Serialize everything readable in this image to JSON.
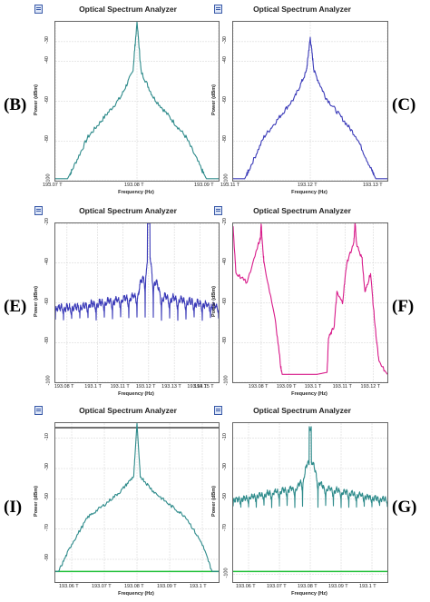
{
  "figure_labels": [
    "(B)",
    "(C)",
    "(E)",
    "(F)",
    "(I)",
    "(G)"
  ],
  "chart_data": [
    {
      "id": "B",
      "type": "line",
      "title": "Optical Spectrum Analyzer",
      "ylabel": "Power (dBm)",
      "xlabel": "Frequency (Hz)",
      "color": "#2e8b8b",
      "ylim": [
        -100,
        -20
      ],
      "xlim": [
        193.07,
        193.09
      ],
      "yticks": [
        "-100",
        "-80",
        "-60",
        "-40",
        "-30"
      ],
      "ytick_values": [
        -100,
        -80,
        -60,
        -40,
        -30
      ],
      "xticks": [
        "193.07 T",
        "193.08 T",
        "193.09 T"
      ],
      "xtick_values": [
        193.07,
        193.08,
        193.09
      ],
      "shape": "triangle",
      "series": [
        {
          "x": [
            193.07,
            193.0715,
            193.072,
            193.074,
            193.076,
            193.078,
            193.0795,
            193.08,
            193.0805,
            193.082,
            193.084,
            193.086,
            193.088,
            193.0885,
            193.09
          ],
          "y": [
            -99,
            -99,
            -95,
            -78,
            -68,
            -58,
            -45,
            -20,
            -45,
            -58,
            -68,
            -78,
            -95,
            -99,
            -99
          ]
        }
      ]
    },
    {
      "id": "C",
      "type": "line",
      "title": "Optical Spectrum Analyzer",
      "ylabel": "Power (dBm)",
      "xlabel": "Frequency (Hz)",
      "color": "#3a3ab8",
      "ylim": [
        -100,
        -20
      ],
      "xlim": [
        193.11,
        193.13
      ],
      "yticks": [
        "-100",
        "-80",
        "-60",
        "-40",
        "-30"
      ],
      "ytick_values": [
        -100,
        -80,
        -60,
        -40,
        -30
      ],
      "xticks": [
        "193.11 T",
        "193.12 T",
        "193.13 T"
      ],
      "xtick_values": [
        193.11,
        193.12,
        193.13
      ],
      "shape": "triangle",
      "series": [
        {
          "x": [
            193.11,
            193.1115,
            193.112,
            193.114,
            193.116,
            193.118,
            193.1195,
            193.12,
            193.1205,
            193.122,
            193.124,
            193.126,
            193.128,
            193.1285,
            193.13
          ],
          "y": [
            -99,
            -99,
            -95,
            -78,
            -68,
            -58,
            -45,
            -28,
            -45,
            -58,
            -68,
            -78,
            -95,
            -99,
            -99
          ]
        }
      ]
    },
    {
      "id": "E",
      "type": "line",
      "title": "Optical Spectrum Analyzer",
      "ylabel": "Power (dBm)",
      "xlabel": "Frequency (Hz)",
      "color": "#3a3ab8",
      "ylim": [
        -100,
        -20
      ],
      "xlim": [
        193.08,
        193.15
      ],
      "yticks": [
        "-100",
        "-80",
        "-60",
        "-40",
        "-20"
      ],
      "ytick_values": [
        -100,
        -80,
        -60,
        -40,
        -20
      ],
      "xticks": [
        "193.08 T",
        "193.1 T",
        "193.11 T",
        "193.12 T",
        "193.13 T",
        "193.14 T",
        "193.15 T"
      ],
      "xtick_values": [
        193.085,
        193.098,
        193.109,
        193.12,
        193.131,
        193.142,
        193.15
      ],
      "shape": "comb",
      "center": 193.12,
      "peak": -20,
      "base": -55,
      "floor": -68,
      "edge": -62,
      "teeth": 20
    },
    {
      "id": "F",
      "type": "line",
      "title": "Optical Spectrum Analyzer",
      "ylabel": "Power (dBm)",
      "xlabel": "Frequency (Hz)",
      "color": "#d81b8a",
      "ylim": [
        -100,
        -20
      ],
      "xlim": [
        193.07,
        193.125
      ],
      "yticks": [
        "-100",
        "-80",
        "-60",
        "-40",
        "-20"
      ],
      "ytick_values": [
        -100,
        -80,
        -60,
        -40,
        -20
      ],
      "xticks": [
        "193.08 T",
        "193.09 T",
        "193.1 T",
        "193.11 T",
        "193.12 T"
      ],
      "xtick_values": [
        193.08,
        193.09,
        193.1,
        193.11,
        193.12
      ],
      "shape": "dual",
      "series": [
        {
          "x": [
            193.07,
            193.071,
            193.075,
            193.079,
            193.0797,
            193.08,
            193.0803,
            193.081,
            193.085,
            193.087,
            193.0875,
            193.1,
            193.1035,
            193.104,
            193.106,
            193.107,
            193.109,
            193.1105,
            193.113,
            193.1135,
            193.114,
            193.116,
            193.117,
            193.119,
            193.1205,
            193.122,
            193.125
          ],
          "y": [
            -22,
            -45,
            -50,
            -30,
            -28,
            -20,
            -28,
            -40,
            -68,
            -92,
            -96,
            -96,
            -95,
            -78,
            -72,
            -55,
            -60,
            -40,
            -30,
            -20,
            -30,
            -38,
            -55,
            -45,
            -70,
            -90,
            -96
          ]
        }
      ]
    },
    {
      "id": "I",
      "type": "line",
      "title": "Optical Spectrum Analyzer",
      "ylabel": "Power (dBm)",
      "xlabel": "Frequency (Hz)",
      "color": "#2e8b8b",
      "ylim": [
        -105,
        0
      ],
      "xlim": [
        193.055,
        193.105
      ],
      "yticks": [
        "-90",
        "-70",
        "-50",
        "-30",
        "-10"
      ],
      "ytick_values": [
        -90,
        -70,
        -50,
        -30,
        -10
      ],
      "xticks": [
        "193.06 T",
        "193.07 T",
        "193.08 T",
        "193.09 T",
        "193.1 T"
      ],
      "xtick_values": [
        193.06,
        193.07,
        193.08,
        193.09,
        193.1
      ],
      "shape": "triangle",
      "reference_level": -98,
      "reference_color": "#22c03a",
      "top_level": -3,
      "top_color": "#444444",
      "series": [
        {
          "x": [
            193.055,
            193.056,
            193.06,
            193.065,
            193.07,
            193.075,
            193.079,
            193.08,
            193.081,
            193.085,
            193.09,
            193.095,
            193.1,
            193.103,
            193.105
          ],
          "y": [
            -98,
            -98,
            -80,
            -62,
            -54,
            -45,
            -35,
            0,
            -35,
            -45,
            -54,
            -62,
            -80,
            -98,
            -98
          ]
        }
      ]
    },
    {
      "id": "G",
      "type": "line",
      "title": "Optical Spectrum Analyzer",
      "ylabel": "Power (dBm)",
      "xlabel": "Frequency (Hz)",
      "color": "#2e8b8b",
      "ylim": [
        -105,
        0
      ],
      "xlim": [
        193.055,
        193.105
      ],
      "yticks": [
        "-100",
        "-70",
        "-50",
        "-30",
        "-10"
      ],
      "ytick_values": [
        -100,
        -70,
        -50,
        -30,
        -10
      ],
      "xticks": [
        "193.06 T",
        "193.07 T",
        "193.08 T",
        "193.09 T",
        "193.1 T"
      ],
      "xtick_values": [
        193.06,
        193.07,
        193.08,
        193.09,
        193.1
      ],
      "shape": "comb",
      "center": 193.08,
      "peak": -5,
      "base": -40,
      "floor": -55,
      "edge": -50,
      "teeth": 20,
      "reference_level": -98,
      "reference_color": "#22c03a"
    }
  ]
}
